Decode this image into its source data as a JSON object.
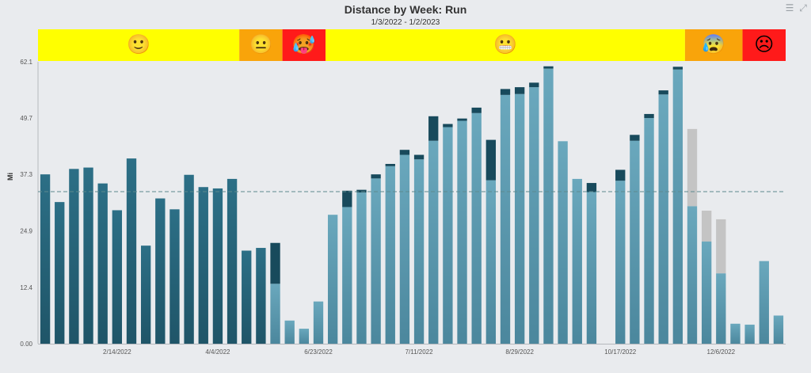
{
  "toolbar": {
    "menu_icon": "menu-icon",
    "expand_icon": "expand-icon"
  },
  "chart_data": {
    "type": "bar",
    "stacked": true,
    "title": "Distance by Week: Run",
    "subtitle": "1/3/2022 - 1/2/2023",
    "ylabel": "Mi",
    "ylim": [
      0,
      62.1
    ],
    "yticks": [
      "0.00",
      "12.4",
      "24.9",
      "37.3",
      "49.7",
      "62.1"
    ],
    "xtick_labels": [
      {
        "index": 5,
        "label": "2/14/2022"
      },
      {
        "index": 12,
        "label": "4/4/2022"
      },
      {
        "index": 19,
        "label": "6/23/2022"
      },
      {
        "index": 26,
        "label": "7/11/2022"
      },
      {
        "index": 33,
        "label": "8/29/2022"
      },
      {
        "index": 40,
        "label": "10/17/2022"
      },
      {
        "index": 47,
        "label": "12/6/2022"
      }
    ],
    "reference_line": 33.5,
    "grid": false,
    "colors": {
      "dark": "#1f5568",
      "light": "#5b9ab0",
      "dark_cap": "#184a5c",
      "gray": "#c4c4c4",
      "ref_line": "#5d8a8f",
      "band_yellow": "#ffff00",
      "band_orange": "#f9a40a",
      "band_red": "#ff1a1a"
    },
    "series": [
      {
        "name": "",
        "values": [
          37.3,
          31.2,
          38.5,
          38.8,
          35.3,
          29.4,
          40.8,
          21.6,
          32.0,
          29.6,
          37.2,
          34.5,
          34.2,
          36.3,
          20.5,
          21.1,
          13.2,
          5.1,
          3.3,
          9.3,
          28.4,
          30.1,
          33.3,
          36.4,
          39.1,
          41.6,
          40.6,
          44.7,
          47.7,
          49.1,
          50.8,
          36.0,
          54.8,
          55.0,
          56.5,
          60.6,
          44.6,
          36.3,
          33.4,
          0,
          35.9,
          44.7,
          49.7,
          54.9,
          60.4,
          30.3,
          22.5,
          15.5,
          4.4,
          4.2,
          18.2,
          6.2
        ]
      },
      {
        "name": "",
        "values": [
          0,
          0,
          0,
          0,
          0,
          0,
          0,
          0,
          0,
          0,
          0,
          0,
          0,
          0,
          0,
          0,
          9.0,
          0,
          0,
          0,
          0,
          3.6,
          0.6,
          0.9,
          0.5,
          1.1,
          1.0,
          5.4,
          0.7,
          0.5,
          1.2,
          8.9,
          1.3,
          1.5,
          1.0,
          0.5,
          0,
          0,
          2.0,
          0,
          2.4,
          1.3,
          0.9,
          0.9,
          0.6,
          0,
          0,
          0,
          0,
          0,
          0,
          0
        ]
      },
      {
        "name": "",
        "values": [
          0,
          0,
          0,
          0,
          0,
          0,
          0,
          0,
          0,
          0,
          0,
          0,
          0,
          0,
          0,
          0,
          0,
          0,
          0,
          0,
          0,
          0,
          0,
          0,
          0,
          0,
          0,
          0,
          0,
          0,
          0,
          0,
          0,
          0,
          0,
          0,
          0,
          0,
          0,
          0,
          0,
          0,
          0,
          0,
          0,
          17.0,
          6.8,
          11.9,
          0,
          0,
          0,
          0
        ]
      }
    ],
    "mood_bands": [
      {
        "from": 0,
        "to": 14,
        "color": "#ffff00",
        "emoji": "🙂"
      },
      {
        "from": 14,
        "to": 17,
        "color": "#f9a40a",
        "emoji": "😐"
      },
      {
        "from": 17,
        "to": 20,
        "color": "#ff1a1a",
        "emoji": "🥵"
      },
      {
        "from": 20,
        "to": 45,
        "color": "#ffff00",
        "emoji": "😬"
      },
      {
        "from": 45,
        "to": 49,
        "color": "#f9a40a",
        "emoji": "😰"
      },
      {
        "from": 49,
        "to": 52,
        "color": "#ff1a1a",
        "emoji": "☹"
      }
    ]
  }
}
